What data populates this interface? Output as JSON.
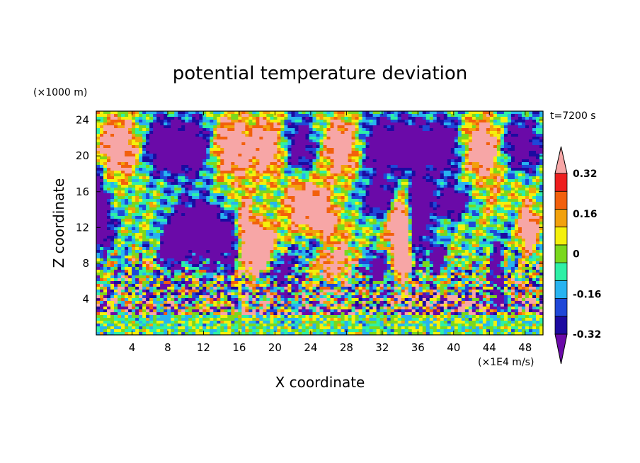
{
  "chart_data": {
    "type": "heatmap",
    "title": "potential temperature deviation",
    "xlabel": "X coordinate",
    "ylabel": "Z coordinate",
    "x_unit": "(×1E4 m/s)",
    "y_unit": "(×1000 m)",
    "time_label": "t=7200 s",
    "xlim": [
      0,
      50
    ],
    "ylim": [
      0,
      25
    ],
    "x_ticks": [
      4,
      8,
      12,
      16,
      20,
      24,
      28,
      32,
      36,
      40,
      44,
      48
    ],
    "y_ticks": [
      4,
      8,
      12,
      16,
      20,
      24
    ],
    "colorbar": {
      "levels": [
        -0.4,
        -0.32,
        -0.24,
        -0.16,
        -0.08,
        0,
        0.08,
        0.16,
        0.24,
        0.32,
        0.4
      ],
      "labels": [
        "0.32",
        "0.16",
        "0",
        "-0.16",
        "-0.32"
      ],
      "label_values": [
        0.32,
        0.16,
        0,
        -0.16,
        -0.32
      ],
      "colors": [
        "#6a0aa8",
        "#1c0aa0",
        "#1f47d8",
        "#28b3f0",
        "#2ef0a6",
        "#7ad81d",
        "#f4f00c",
        "#f2a10c",
        "#f2600c",
        "#ee1e1e",
        "#f7a6a6"
      ]
    }
  }
}
